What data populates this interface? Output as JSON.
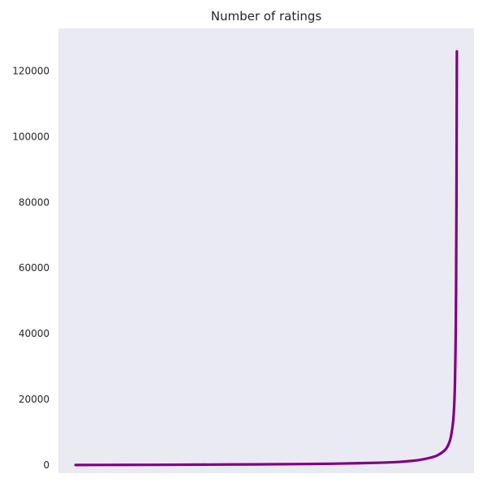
{
  "chart_data": {
    "type": "line",
    "title": "Number of ratings",
    "xlabel": "",
    "ylabel": "",
    "grid": false,
    "ylim": [
      -2500,
      133000
    ],
    "yticks": [
      0,
      20000,
      40000,
      60000,
      80000,
      100000,
      120000
    ],
    "ytick_labels": [
      "0",
      "20000",
      "40000",
      "60000",
      "80000",
      "100000",
      "120000"
    ],
    "xlim": [
      -0.045,
      1.045
    ],
    "series": [
      {
        "name": "Number of ratings",
        "color": "#800080",
        "x": [
          0,
          0.2,
          0.4,
          0.6,
          0.7,
          0.8,
          0.85,
          0.9,
          0.93,
          0.95,
          0.97,
          0.98,
          0.985,
          0.99,
          0.993,
          0.995,
          0.997,
          0.998,
          0.999,
          1.0
        ],
        "y": [
          0,
          50,
          150,
          300,
          450,
          700,
          950,
          1500,
          2200,
          3000,
          4700,
          6800,
          9000,
          13000,
          18000,
          25000,
          40000,
          55000,
          80000,
          126000
        ]
      }
    ]
  }
}
